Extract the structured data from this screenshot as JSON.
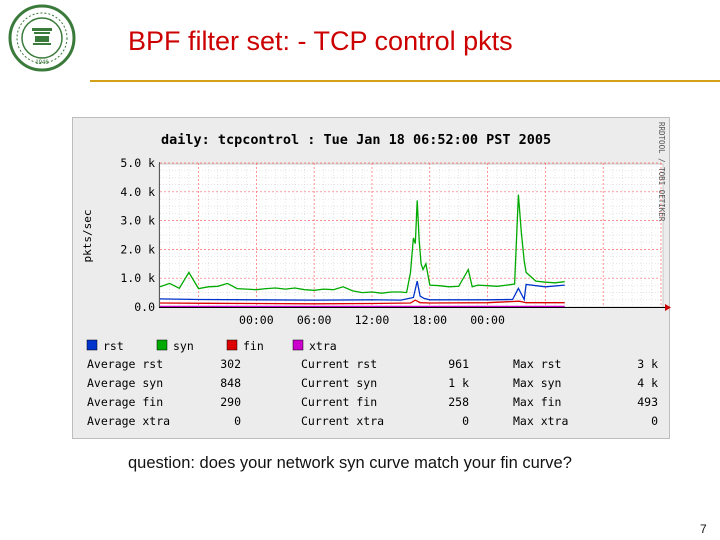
{
  "slide": {
    "title": "BPF filter set: - TCP control pkts",
    "caption": "question: does your network syn curve match your fin curve?",
    "page_number": "7",
    "logo": {
      "icon": "university-seal-icon",
      "text": "PORTLAND STATE UNIVERSITY",
      "year": "1946",
      "color": "#3a7a3a"
    },
    "rule_color": "#d4a017",
    "title_color": "#cc0000"
  },
  "chart_data": {
    "type": "line",
    "title": "daily: tcpcontrol : Tue Jan 18 06:52:00 PST 2005",
    "ylabel": "pkts/sec",
    "watermark": "RRDTOOL / TOBI OETIKER",
    "yticks": [
      "0.0",
      "1.0 k",
      "2.0 k",
      "3.0 k",
      "4.0 k",
      "5.0 k"
    ],
    "ylim": [
      0,
      5000
    ],
    "xticks": [
      "00:00",
      "06:00",
      "12:00",
      "18:00",
      "00:00"
    ],
    "x_hours_range": [
      -10,
      42
    ],
    "x_tick_hours": [
      0,
      6,
      12,
      18,
      24
    ],
    "grid": true,
    "series": [
      {
        "name": "rst",
        "color": "#0033cc",
        "points": [
          [
            -10,
            280
          ],
          [
            -6,
            260
          ],
          [
            0,
            250
          ],
          [
            6,
            240
          ],
          [
            12,
            250
          ],
          [
            15,
            240
          ],
          [
            16.3,
            330
          ],
          [
            16.7,
            900
          ],
          [
            17.0,
            380
          ],
          [
            17.4,
            300
          ],
          [
            18,
            250
          ],
          [
            24,
            250
          ],
          [
            26.6,
            260
          ],
          [
            27.2,
            650
          ],
          [
            27.8,
            260
          ],
          [
            28,
            780
          ],
          [
            30,
            700
          ],
          [
            32,
            760
          ]
        ]
      },
      {
        "name": "syn",
        "color": "#00aa00",
        "points": [
          [
            -10,
            700
          ],
          [
            -9,
            820
          ],
          [
            -8,
            650
          ],
          [
            -7,
            1200
          ],
          [
            -6,
            640
          ],
          [
            -5,
            700
          ],
          [
            -4,
            720
          ],
          [
            -3,
            820
          ],
          [
            -2,
            640
          ],
          [
            -1,
            620
          ],
          [
            0,
            600
          ],
          [
            1,
            640
          ],
          [
            2,
            660
          ],
          [
            3,
            620
          ],
          [
            4,
            660
          ],
          [
            5,
            600
          ],
          [
            6,
            580
          ],
          [
            7,
            620
          ],
          [
            8,
            600
          ],
          [
            9,
            700
          ],
          [
            10,
            560
          ],
          [
            11,
            500
          ],
          [
            12,
            520
          ],
          [
            13,
            480
          ],
          [
            14,
            520
          ],
          [
            15,
            520
          ],
          [
            15.6,
            500
          ],
          [
            16.0,
            1200
          ],
          [
            16.3,
            2400
          ],
          [
            16.5,
            2200
          ],
          [
            16.7,
            3700
          ],
          [
            16.9,
            2300
          ],
          [
            17.1,
            1500
          ],
          [
            17.3,
            1300
          ],
          [
            17.6,
            1500
          ],
          [
            18,
            760
          ],
          [
            19,
            740
          ],
          [
            20,
            700
          ],
          [
            21,
            720
          ],
          [
            22,
            1300
          ],
          [
            22.4,
            700
          ],
          [
            23,
            760
          ],
          [
            24,
            740
          ],
          [
            25,
            720
          ],
          [
            26,
            760
          ],
          [
            26.8,
            800
          ],
          [
            27.2,
            3900
          ],
          [
            27.5,
            2600
          ],
          [
            27.8,
            1600
          ],
          [
            28,
            1200
          ],
          [
            29,
            900
          ],
          [
            30,
            860
          ],
          [
            31,
            840
          ],
          [
            32,
            880
          ]
        ]
      },
      {
        "name": "fin",
        "color": "#dd0000",
        "points": [
          [
            -10,
            140
          ],
          [
            -5,
            130
          ],
          [
            0,
            120
          ],
          [
            6,
            110
          ],
          [
            12,
            120
          ],
          [
            16,
            140
          ],
          [
            16.5,
            240
          ],
          [
            17,
            150
          ],
          [
            18,
            140
          ],
          [
            24,
            150
          ],
          [
            27.3,
            200
          ],
          [
            28,
            150
          ],
          [
            32,
            150
          ]
        ]
      },
      {
        "name": "xtra",
        "color": "#cc00cc",
        "points": [
          [
            -10,
            20
          ],
          [
            32,
            20
          ]
        ]
      }
    ],
    "legend": [
      {
        "name": "rst",
        "color": "#0033cc"
      },
      {
        "name": "syn",
        "color": "#00aa00"
      },
      {
        "name": "fin",
        "color": "#dd0000"
      },
      {
        "name": "xtra",
        "color": "#cc00cc"
      }
    ],
    "stats": {
      "average": [
        {
          "label": "Average rst",
          "value": "302"
        },
        {
          "label": "Average syn",
          "value": "848"
        },
        {
          "label": "Average fin",
          "value": "290"
        },
        {
          "label": "Average xtra",
          "value": "0"
        }
      ],
      "current": [
        {
          "label": "Current rst",
          "value": "961"
        },
        {
          "label": "Current syn",
          "value": "1 k"
        },
        {
          "label": "Current fin",
          "value": "258"
        },
        {
          "label": "Current xtra",
          "value": "0"
        }
      ],
      "max": [
        {
          "label": "Max rst",
          "value": "3 k"
        },
        {
          "label": "Max syn",
          "value": "4 k"
        },
        {
          "label": "Max fin",
          "value": "493"
        },
        {
          "label": "Max xtra",
          "value": "0"
        }
      ]
    }
  }
}
